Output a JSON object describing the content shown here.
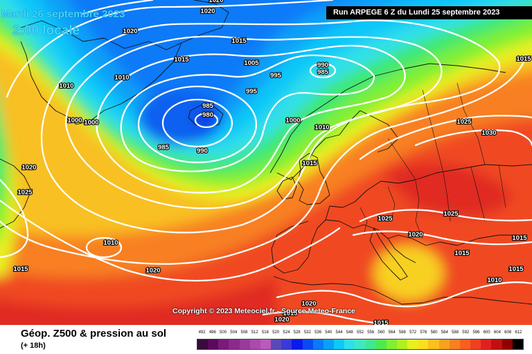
{
  "header": {
    "date": "Mardi 26 septembre 2023",
    "time": "2:00 locale",
    "run": "Run ARPEGE 6 Z du Lundi 25 septembre 2023"
  },
  "footer": {
    "title": "Géop. Z500 & pression au sol",
    "subtitle": "(+ 18h)",
    "copyright": "Copyright © 2023 Meteociel.fr - Source Meteo-France"
  },
  "legend": {
    "labels": [
      "492",
      "496",
      "500",
      "504",
      "508",
      "512",
      "516",
      "520",
      "524",
      "528",
      "532",
      "536",
      "540",
      "544",
      "548",
      "552",
      "556",
      "560",
      "564",
      "568",
      "572",
      "576",
      "580",
      "584",
      "588",
      "592",
      "596",
      "600",
      "604",
      "608",
      "612"
    ],
    "colors": [
      "#3a0a3a",
      "#5a0a5a",
      "#7a1a7a",
      "#8a2a8a",
      "#9a3a9a",
      "#aa4aaa",
      "#ba5aba",
      "#5a4ab8",
      "#3a3ad8",
      "#0a1ae8",
      "#0a4af0",
      "#0a7af8",
      "#0aa0f8",
      "#10c8f8",
      "#30e0e8",
      "#40e8c0",
      "#40e890",
      "#50e850",
      "#80f030",
      "#b0f020",
      "#e8f020",
      "#f8e020",
      "#f8c020",
      "#f8a020",
      "#f88020",
      "#f86020",
      "#f04020",
      "#e02020",
      "#c01010",
      "#900000",
      "#000000"
    ],
    "colors_note_ignore": ""
  },
  "isobar_labels": [
    {
      "text": "1020"
    },
    {
      "text": "1020"
    },
    {
      "text": "1020"
    },
    {
      "text": "1015"
    },
    {
      "text": "1015"
    },
    {
      "text": "1010"
    },
    {
      "text": "1010"
    },
    {
      "text": "1005"
    },
    {
      "text": "995"
    },
    {
      "text": "995"
    },
    {
      "text": "990"
    },
    {
      "text": "985"
    },
    {
      "text": "985"
    },
    {
      "text": "980"
    },
    {
      "text": "985"
    },
    {
      "text": "990"
    },
    {
      "text": "1000"
    },
    {
      "text": "1000"
    },
    {
      "text": "1000"
    },
    {
      "text": "1010"
    },
    {
      "text": "1020"
    },
    {
      "text": "1025"
    },
    {
      "text": "1015"
    },
    {
      "text": "1025"
    },
    {
      "text": "1030"
    },
    {
      "text": "1010"
    },
    {
      "text": "1015"
    },
    {
      "text": "1020"
    },
    {
      "text": "1025"
    },
    {
      "text": "1020"
    },
    {
      "text": "1025"
    },
    {
      "text": "1015"
    },
    {
      "text": "1015"
    },
    {
      "text": "1015"
    },
    {
      "text": "1010"
    },
    {
      "text": "1020"
    },
    {
      "text": "1015"
    },
    {
      "text": "1020"
    },
    {
      "text": "1015"
    },
    {
      "text": "1015"
    }
  ],
  "colors": {
    "title_text": "#3fd7ff",
    "isobar": "#ffffff",
    "coast": "#111111"
  }
}
